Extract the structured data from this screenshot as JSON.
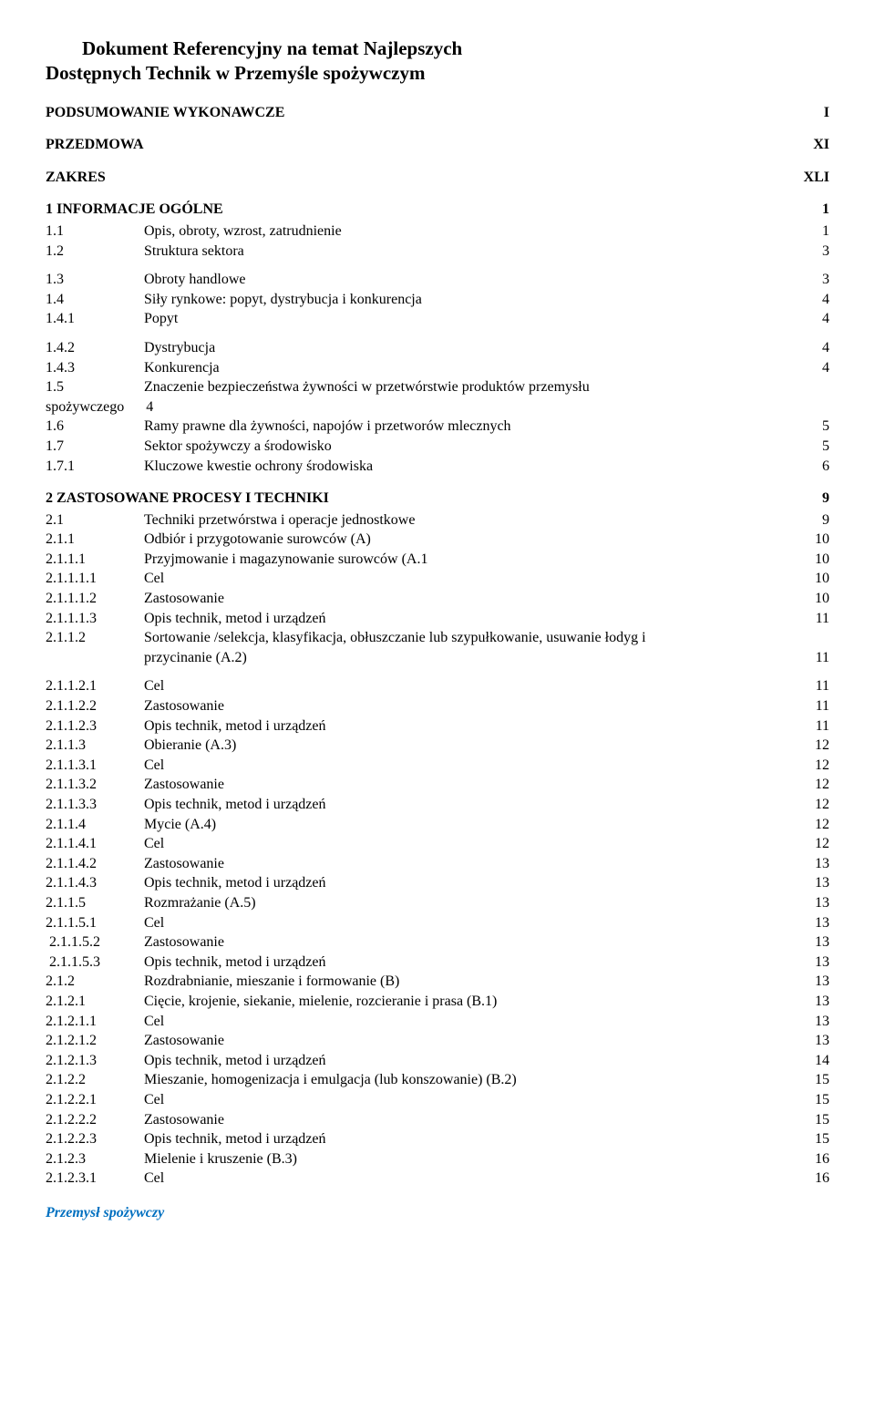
{
  "title_line1_indent": "Dokument Referencyjny na temat Najlepszych",
  "title_line2": "Dostępnych Technik w Przemyśle spożywczym",
  "head1": {
    "label": "PODSUMOWANIE WYKONAWCZE",
    "page": "I"
  },
  "head2": {
    "label": "PRZEDMOWA",
    "page": "XI"
  },
  "head3": {
    "label": "ZAKRES",
    "page": "XLI"
  },
  "sec1": {
    "label": "1 INFORMACJE OGÓLNE",
    "page": "1"
  },
  "r": {
    "a": {
      "n": "1.1",
      "t": "Opis, obroty, wzrost, zatrudnienie",
      "p": "1"
    },
    "b": {
      "n": "1.2",
      "t": "Struktura sektora",
      "p": "3"
    },
    "c": {
      "n": "1.3",
      "t": "Obroty handlowe",
      "p": "3"
    },
    "d": {
      "n": "1.4",
      "t": "Siły rynkowe: popyt, dystrybucja i konkurencja",
      "p": "4"
    },
    "e": {
      "n": "1.4.1",
      "t": "Popyt",
      "p": "4"
    },
    "f": {
      "n": "1.4.2",
      "t": "Dystrybucja",
      "p": "4"
    },
    "g": {
      "n": "1.4.3",
      "t": "Konkurencja",
      "p": "4"
    },
    "h1": {
      "n": "1.5",
      "t": "Znaczenie bezpieczeństwa żywności w przetwórstwie produktów przemysłu"
    },
    "h2": {
      "n": "spożywczego",
      "t": "4"
    },
    "i": {
      "n": "1.6",
      "t": "Ramy prawne dla żywności, napojów i przetworów mlecznych",
      "p": "5"
    },
    "j": {
      "n": "1.7",
      "t": "Sektor spożywczy a środowisko",
      "p": "5"
    },
    "k": {
      "n": "1.7.1",
      "t": "Kluczowe kwestie ochrony środowiska",
      "p": "6"
    }
  },
  "sec2": {
    "label": "2 ZASTOSOWANE PROCESY I TECHNIKI",
    "page": "9"
  },
  "s": {
    "a": {
      "n": "2.1",
      "t": "Techniki przetwórstwa i operacje jednostkowe",
      "p": "9"
    },
    "b": {
      "n": "2.1.1",
      "t": "Odbiór i przygotowanie surowców (A)",
      "p": "10"
    },
    "c": {
      "n": "2.1.1.1",
      "t": "Przyjmowanie i magazynowanie surowców (A.1",
      "p": "10"
    },
    "d": {
      "n": "2.1.1.1.1",
      "t": "Cel",
      "p": "10"
    },
    "e": {
      "n": "2.1.1.1.2",
      "t": "Zastosowanie",
      "p": "10"
    },
    "f": {
      "n": "2.1.1.1.3",
      "t": "Opis technik, metod i urządzeń",
      "p": "11"
    },
    "g1": {
      "n": "2.1.1.2",
      "t": "Sortowanie /selekcja, klasyfikacja, obłuszczanie lub szypułkowanie, usuwanie łodyg i"
    },
    "g2": {
      "t": "przycinanie (A.2)",
      "p": "11"
    },
    "h": {
      "n": "2.1.1.2.1",
      "t": "Cel",
      "p": "11"
    },
    "i": {
      "n": "2.1.1.2.2",
      "t": "Zastosowanie",
      "p": "11"
    },
    "j": {
      "n": "2.1.1.2.3",
      "t": "Opis technik, metod i urządzeń",
      "p": "11"
    },
    "k": {
      "n": "2.1.1.3",
      "t": "Obieranie (A.3)",
      "p": "12"
    },
    "l": {
      "n": "2.1.1.3.1",
      "t": "Cel",
      "p": "12"
    },
    "m": {
      "n": "2.1.1.3.2",
      "t": "Zastosowanie",
      "p": "12"
    },
    "n": {
      "n": "2.1.1.3.3",
      "t": "Opis technik, metod i urządzeń",
      "p": "12"
    },
    "o": {
      "n": "2.1.1.4",
      "t": "Mycie (A.4)",
      "p": "12"
    },
    "p": {
      "n": "2.1.1.4.1",
      "t": "Cel",
      "p": "12"
    },
    "q": {
      "n": "2.1.1.4.2",
      "t": "Zastosowanie",
      "p": "13"
    },
    "r": {
      "n": "2.1.1.4.3",
      "t": "Opis technik, metod i urządzeń",
      "p": "13"
    },
    "s": {
      "n": "2.1.1.5",
      "t": "Rozmrażanie (A.5)",
      "p": "13"
    },
    "t": {
      "n": "2.1.1.5.1",
      "t": "Cel",
      "p": "13"
    },
    "u": {
      "n": " 2.1.1.5.2",
      "t": "Zastosowanie",
      "p": "13"
    },
    "v": {
      "n": " 2.1.1.5.3",
      "t": "Opis technik, metod i urządzeń",
      "p": "13"
    },
    "w": {
      "n": "2.1.2",
      "t": "Rozdrabnianie, mieszanie i formowanie (B)",
      "p": "13"
    },
    "x": {
      "n": "2.1.2.1",
      "t": "Cięcie, krojenie, siekanie, mielenie, rozcieranie i prasa (B.1)",
      "p": "13"
    },
    "y": {
      "n": "2.1.2.1.1",
      "t": "Cel",
      "p": "13"
    },
    "z": {
      "n": "2.1.2.1.2",
      "t": "Zastosowanie",
      "p": "13"
    },
    "aa": {
      "n": "2.1.2.1.3",
      "t": "Opis technik, metod i urządzeń",
      "p": "14"
    },
    "ab": {
      "n": "2.1.2.2",
      "t": "Mieszanie, homogenizacja i emulgacja (lub konszowanie) (B.2)",
      "p": "15"
    },
    "ac": {
      "n": "2.1.2.2.1",
      "t": "Cel",
      "p": "15"
    },
    "ad": {
      "n": "2.1.2.2.2",
      "t": "Zastosowanie",
      "p": "15"
    },
    "ae": {
      "n": "2.1.2.2.3",
      "t": "Opis technik, metod i urządzeń",
      "p": "15"
    },
    "af": {
      "n": "2.1.2.3",
      "t": "Mielenie i kruszenie (B.3)",
      "p": "16"
    },
    "ag": {
      "n": "2.1.2.3.1",
      "t": "Cel",
      "p": "16"
    }
  },
  "footer": "Przemysł spożywczy"
}
